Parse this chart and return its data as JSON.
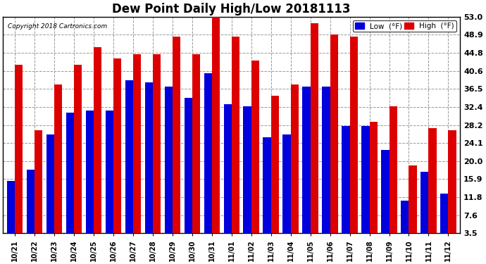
{
  "title": "Dew Point Daily High/Low 20181113",
  "copyright": "Copyright 2018 Cartronics.com",
  "dates": [
    "10/21",
    "10/22",
    "10/23",
    "10/24",
    "10/25",
    "10/26",
    "10/27",
    "10/28",
    "10/29",
    "10/30",
    "10/31",
    "11/01",
    "11/02",
    "11/03",
    "11/04",
    "11/05",
    "11/06",
    "11/07",
    "11/08",
    "11/09",
    "11/10",
    "11/11",
    "11/12"
  ],
  "low": [
    15.5,
    18.0,
    26.0,
    31.0,
    31.5,
    31.5,
    38.5,
    38.0,
    37.0,
    34.5,
    40.0,
    33.0,
    32.5,
    25.5,
    26.0,
    37.0,
    37.0,
    28.0,
    28.0,
    22.5,
    11.0,
    17.5,
    12.5
  ],
  "high": [
    42.0,
    27.0,
    37.5,
    42.0,
    46.0,
    43.5,
    44.5,
    44.5,
    48.5,
    44.5,
    53.5,
    48.5,
    43.0,
    35.0,
    37.5,
    51.5,
    49.0,
    48.5,
    29.0,
    32.5,
    19.0,
    27.5,
    27.0
  ],
  "ylim": [
    3.5,
    53.0
  ],
  "yticks": [
    3.5,
    7.6,
    11.8,
    15.9,
    20.0,
    24.1,
    28.2,
    32.4,
    36.5,
    40.6,
    44.8,
    48.9,
    53.0
  ],
  "low_color": "#0000dd",
  "high_color": "#dd0000",
  "bg_color": "#ffffff",
  "grid_color": "#999999",
  "bar_width": 0.4,
  "title_fontsize": 12,
  "tick_fontsize": 7,
  "ytick_fontsize": 8
}
